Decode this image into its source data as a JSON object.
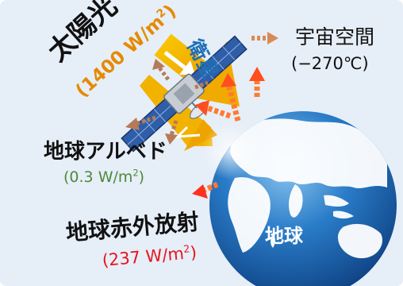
{
  "sunlight": {
    "name": "太陽光",
    "flux_value": "1400",
    "flux_unit": "W/m",
    "flux_exp": "2"
  },
  "satellite": {
    "name": "衛星"
  },
  "space": {
    "name": "宇宙空間",
    "temperature": "(−270℃)"
  },
  "albedo": {
    "name": "地球アルベド",
    "flux_value": "0.3",
    "flux_unit": "W/m",
    "flux_exp": "2"
  },
  "infrared": {
    "name": "地球赤外放射",
    "flux_value": "237",
    "flux_unit": "W/m",
    "flux_exp": "2"
  },
  "earth": {
    "name": "地球"
  },
  "colors": {
    "panel_bg": "#e6eef8",
    "sunlight_arrow": "#f2b200",
    "sunlight_text": "#e58a00",
    "satellite_text": "#1f6fb5",
    "albedo_text": "#4d8a3a",
    "infrared_text": "#e8141c",
    "earth_ocean": "#1f6fb8",
    "earth_land": "#ffffff",
    "heat_arrow": "#d96b28"
  }
}
